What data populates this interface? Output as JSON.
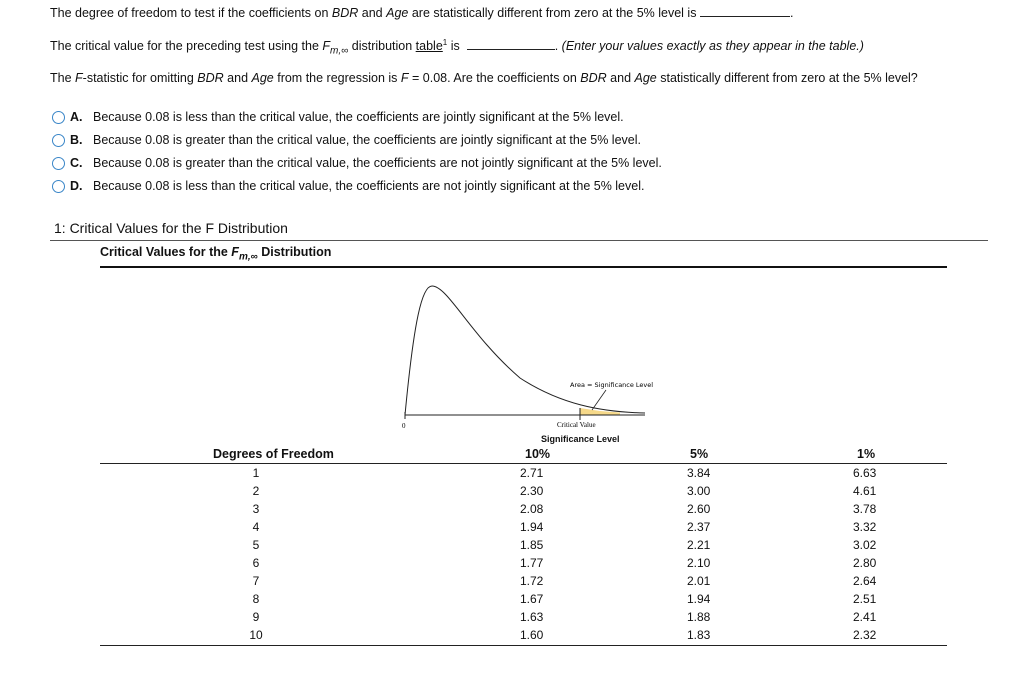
{
  "question1": {
    "text": [
      "The degree of freedom to test if the coefficients on ",
      "BDR",
      " and ",
      "Age",
      " are statistically different from zero at the 5% level is"
    ],
    "after": "."
  },
  "question2": {
    "text": [
      "The critical value for the preceding test using the ",
      "F",
      "m,∞",
      " distribution ",
      "table",
      "1",
      " is"
    ],
    "after": ".",
    "note": "(Enter your values exactly as they appear in the table.)"
  },
  "question3": {
    "text": [
      "The ",
      "F",
      "-statistic for omitting ",
      "BDR",
      " and ",
      "Age",
      " from the regression is ",
      "F",
      " = 0.08. Are the coefficients on ",
      "BDR",
      " and ",
      "Age",
      " statistically different from zero at the 5% level?"
    ]
  },
  "options": [
    {
      "letter": "A.",
      "text": "Because 0.08 is less than the critical value, the coefficients are jointly significant at the 5% level."
    },
    {
      "letter": "B.",
      "text": "Because 0.08 is greater than the critical value, the coefficients are jointly significant at the 5% level."
    },
    {
      "letter": "C.",
      "text": "Because 0.08 is greater than the critical value, the coefficients are not jointly significant at the 5% level."
    },
    {
      "letter": "D.",
      "text": "Because 0.08 is less than the critical value, the coefficients are not jointly significant at the 5% level."
    }
  ],
  "section": {
    "title": "1: Critical Values for the F Distribution"
  },
  "caption": [
    "Critical Values for the ",
    "F",
    "m,∞",
    " Distribution"
  ],
  "figure": {
    "area_label": "Area = Significance Level",
    "critical_label": "Critical Value",
    "origin": "0"
  },
  "table": {
    "group_header": "Significance Level",
    "columns": [
      "Degrees of Freedom",
      "10%",
      "5%",
      "1%"
    ],
    "rows": [
      [
        "1",
        "2.71",
        "3.84",
        "6.63"
      ],
      [
        "2",
        "2.30",
        "3.00",
        "4.61"
      ],
      [
        "3",
        "2.08",
        "2.60",
        "3.78"
      ],
      [
        "4",
        "1.94",
        "2.37",
        "3.32"
      ],
      [
        "5",
        "1.85",
        "2.21",
        "3.02"
      ],
      [
        "6",
        "1.77",
        "2.10",
        "2.80"
      ],
      [
        "7",
        "1.72",
        "2.01",
        "2.64"
      ],
      [
        "8",
        "1.67",
        "1.94",
        "2.51"
      ],
      [
        "9",
        "1.63",
        "1.88",
        "2.41"
      ],
      [
        "10",
        "1.60",
        "1.83",
        "2.32"
      ]
    ]
  }
}
